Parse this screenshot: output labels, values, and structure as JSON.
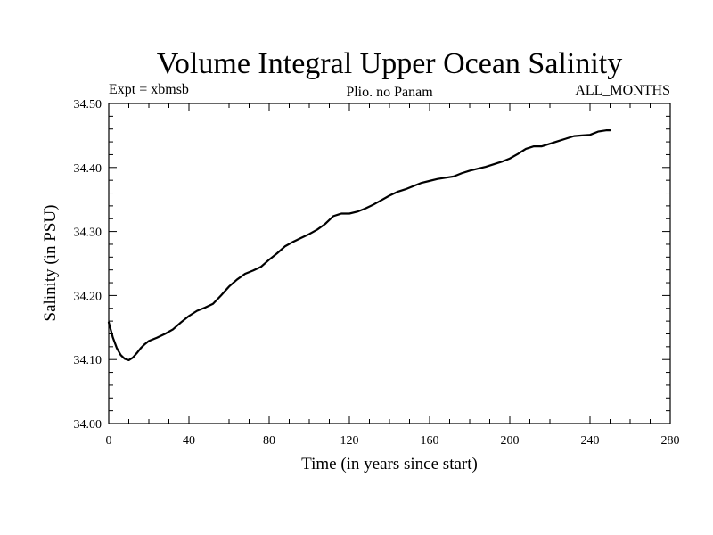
{
  "chart_data": {
    "type": "line",
    "title": "Volume Integral Upper Ocean Salinity",
    "subtitle_left": "Expt = xbmsb",
    "subtitle_center": "Plio. no Panam",
    "subtitle_right": "ALL_MONTHS",
    "xlabel": "Time (in years since start)",
    "ylabel": "Salinity (in PSU)",
    "xlim": [
      0,
      280
    ],
    "ylim": [
      34.0,
      34.5
    ],
    "xticks": [
      "0",
      "40",
      "80",
      "120",
      "160",
      "200",
      "240",
      "280"
    ],
    "yticks": [
      "34.00",
      "34.10",
      "34.20",
      "34.30",
      "34.40",
      "34.50"
    ],
    "grid": false,
    "series": [
      {
        "color": "#000000",
        "x": [
          0,
          2,
          4,
          6,
          8,
          10,
          12,
          14,
          16,
          18,
          20,
          24,
          28,
          32,
          36,
          40,
          44,
          48,
          52,
          56,
          60,
          64,
          68,
          72,
          76,
          80,
          84,
          88,
          92,
          96,
          100,
          104,
          108,
          112,
          116,
          120,
          124,
          128,
          132,
          136,
          140,
          144,
          148,
          152,
          156,
          160,
          164,
          168,
          172,
          176,
          180,
          184,
          188,
          192,
          196,
          200,
          204,
          208,
          212,
          216,
          220,
          224,
          228,
          232,
          236,
          240,
          244,
          248,
          250
        ],
        "y": [
          34.158,
          34.135,
          34.118,
          34.107,
          34.101,
          34.099,
          34.103,
          34.11,
          34.118,
          34.124,
          34.129,
          34.134,
          34.14,
          34.147,
          34.158,
          34.168,
          34.176,
          34.181,
          34.187,
          34.2,
          34.214,
          34.225,
          34.234,
          34.239,
          34.245,
          34.256,
          34.266,
          34.277,
          34.284,
          34.29,
          34.296,
          34.303,
          34.312,
          34.324,
          34.328,
          34.328,
          34.331,
          34.336,
          34.342,
          34.349,
          34.356,
          34.362,
          34.366,
          34.371,
          34.376,
          34.379,
          34.382,
          34.384,
          34.386,
          34.391,
          34.395,
          34.398,
          34.401,
          34.405,
          34.409,
          34.414,
          34.421,
          34.429,
          34.433,
          34.433,
          34.437,
          34.441,
          34.445,
          34.449,
          34.45,
          34.451,
          34.456,
          34.458,
          34.458
        ]
      }
    ]
  }
}
